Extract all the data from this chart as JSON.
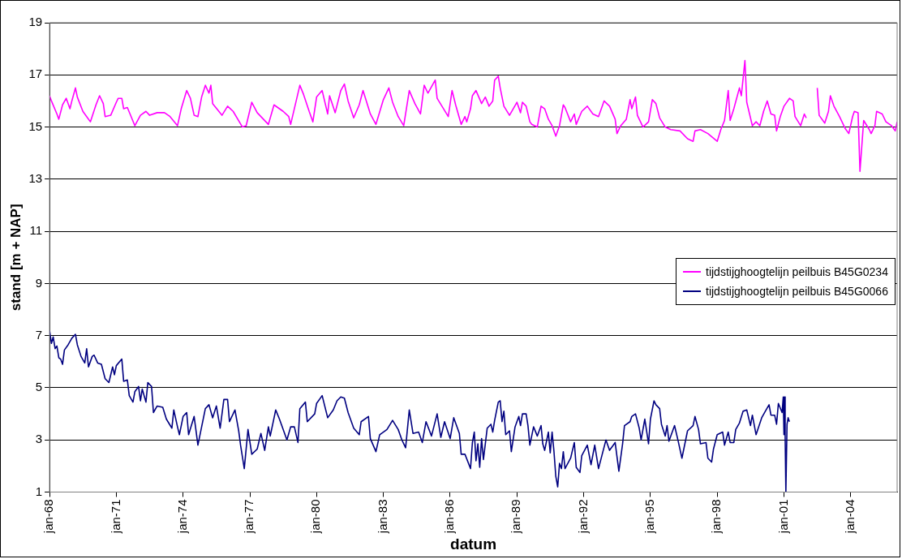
{
  "chart_data": {
    "type": "line",
    "xlabel": "datum",
    "ylabel": "stand [m + NAP]",
    "xlim": [
      "1968-01",
      "2006-02"
    ],
    "xticks": [
      {
        "value": "1968-01",
        "label": "jan-68"
      },
      {
        "value": "1971-01",
        "label": "jan-71"
      },
      {
        "value": "1974-01",
        "label": "jan-74"
      },
      {
        "value": "1977-01",
        "label": "jan-77"
      },
      {
        "value": "1980-01",
        "label": "jan-80"
      },
      {
        "value": "1983-01",
        "label": "jan-83"
      },
      {
        "value": "1986-01",
        "label": "jan-86"
      },
      {
        "value": "1989-01",
        "label": "jan-89"
      },
      {
        "value": "1992-01",
        "label": "jan-92"
      },
      {
        "value": "1995-01",
        "label": "jan-95"
      },
      {
        "value": "1998-01",
        "label": "jan-98"
      },
      {
        "value": "2001-01",
        "label": "jan-01"
      },
      {
        "value": "2004-01",
        "label": "jan-04"
      }
    ],
    "ylim": [
      1,
      19
    ],
    "yticks": [
      1,
      3,
      5,
      7,
      9,
      11,
      13,
      15,
      17,
      19
    ],
    "grid": "y",
    "legend": "right",
    "series": [
      {
        "name": "tijdstijghoogtelijn peilbuis B45G0234",
        "color": "#ff00ff",
        "x": [
          "1968-01",
          "1968-02",
          "1968-05",
          "1968-06",
          "1968-08",
          "1968-10",
          "1968-12",
          "1969-01",
          "1969-03",
          "1969-04",
          "1969-07",
          "1969-09",
          "1969-11",
          "1970-02",
          "1970-04",
          "1970-06",
          "1970-07",
          "1970-10",
          "1971-01",
          "1971-02",
          "1971-04",
          "1971-05",
          "1971-07",
          "1971-09",
          "1971-11",
          "1972-02",
          "1972-05",
          "1972-07",
          "1972-11",
          "1973-03",
          "1973-06",
          "1973-10",
          "1973-12",
          "1974-03",
          "1974-05",
          "1974-07",
          "1974-09",
          "1974-11",
          "1975-01",
          "1975-03",
          "1975-04",
          "1975-05",
          "1975-10",
          "1976-01",
          "1976-04",
          "1976-09",
          "1976-11",
          "1977-02",
          "1977-05",
          "1977-11",
          "1978-02",
          "1978-07",
          "1978-10",
          "1978-11",
          "1979-04",
          "1979-06",
          "1979-09",
          "1979-11",
          "1980-01",
          "1980-04",
          "1980-07",
          "1980-08",
          "1980-11",
          "1981-02",
          "1981-04",
          "1981-06",
          "1981-09",
          "1981-12",
          "1982-02",
          "1982-06",
          "1982-09",
          "1983-01",
          "1983-04",
          "1983-06",
          "1983-09",
          "1983-12",
          "1984-03",
          "1984-06",
          "1984-09",
          "1984-11",
          "1985-01",
          "1985-05",
          "1985-06",
          "1985-12",
          "1986-02",
          "1986-04",
          "1986-07",
          "1986-09",
          "1986-10",
          "1986-12",
          "1987-01",
          "1987-03",
          "1987-06",
          "1987-08",
          "1987-10",
          "1987-12",
          "1988-01",
          "1988-03",
          "1988-04",
          "1988-06",
          "1988-09",
          "1988-11",
          "1989-01",
          "1989-03",
          "1989-04",
          "1989-06",
          "1989-08",
          "1989-09",
          "1989-12",
          "1990-02",
          "1990-04",
          "1990-06",
          "1990-08",
          "1990-10",
          "1990-12",
          "1991-02",
          "1991-03",
          "1991-06",
          "1991-08",
          "1991-09",
          "1991-12",
          "1992-03",
          "1992-06",
          "1992-09",
          "1992-12",
          "1993-03",
          "1993-06",
          "1993-07",
          "1993-09",
          "1993-12",
          "1994-02",
          "1994-03",
          "1994-05",
          "1994-06",
          "1994-09",
          "1994-12",
          "1995-02",
          "1995-04",
          "1995-06",
          "1995-09",
          "1995-12",
          "1996-05",
          "1996-09",
          "1996-12",
          "1997-01",
          "1997-04",
          "1997-08",
          "1998-01",
          "1998-03",
          "1998-05",
          "1998-07",
          "1998-08",
          "1998-10",
          "1999-01",
          "1999-02",
          "1999-04",
          "1999-05",
          "1999-08",
          "1999-10",
          "1999-12",
          "2000-02",
          "2000-04",
          "2000-06",
          "2000-08",
          "2000-09",
          "2000-11",
          "2001-01",
          "2001-04",
          "2001-06",
          "2001-07",
          "2001-10",
          "2001-12",
          "2002-01",
          "2002-04",
          "2002-07",
          "2002-08",
          "2002-11",
          "2003-01",
          "2003-02",
          "2003-04",
          "2003-07",
          "2003-10",
          "2003-12",
          "2004-02",
          "2004-03",
          "2004-05",
          "2004-06",
          "2004-08",
          "2004-11",
          "2004-12",
          "2005-02",
          "2005-03",
          "2005-06",
          "2005-08",
          "2005-11",
          "2006-01",
          "2006-02"
        ],
        "values": [
          16.2,
          16.0,
          15.5,
          15.3,
          15.85,
          16.1,
          15.7,
          16.0,
          16.5,
          16.15,
          15.6,
          15.4,
          15.2,
          15.85,
          16.2,
          15.9,
          15.4,
          15.45,
          15.95,
          16.1,
          16.1,
          15.7,
          15.75,
          15.4,
          15.05,
          15.45,
          15.6,
          15.45,
          15.55,
          15.55,
          15.4,
          15.05,
          15.7,
          16.4,
          16.1,
          15.45,
          15.4,
          16.15,
          16.6,
          16.3,
          16.6,
          15.9,
          15.45,
          15.8,
          15.6,
          15.0,
          15.05,
          15.95,
          15.55,
          15.1,
          15.85,
          15.6,
          15.4,
          15.1,
          16.6,
          16.25,
          15.6,
          15.2,
          16.15,
          16.4,
          15.5,
          16.2,
          15.55,
          16.4,
          16.65,
          16.0,
          15.35,
          15.85,
          16.4,
          15.5,
          15.1,
          16.05,
          16.5,
          15.95,
          15.4,
          15.05,
          16.4,
          15.9,
          15.5,
          16.6,
          16.3,
          16.8,
          16.1,
          15.4,
          16.4,
          15.85,
          15.1,
          15.4,
          15.2,
          15.7,
          16.2,
          16.4,
          15.9,
          16.15,
          15.8,
          16.0,
          16.8,
          16.95,
          16.5,
          15.8,
          15.45,
          15.7,
          15.95,
          15.55,
          15.95,
          15.8,
          15.2,
          15.1,
          15.0,
          15.8,
          15.7,
          15.3,
          15.05,
          14.65,
          15.05,
          15.85,
          15.75,
          15.2,
          15.5,
          15.1,
          15.6,
          15.8,
          15.5,
          15.4,
          16.0,
          15.8,
          15.3,
          14.75,
          15.05,
          15.3,
          16.05,
          15.7,
          16.15,
          15.45,
          15.0,
          15.2,
          16.05,
          15.9,
          15.35,
          15.0,
          14.9,
          14.85,
          14.55,
          14.45,
          14.85,
          14.9,
          14.75,
          14.45,
          14.9,
          15.25,
          16.4,
          15.25,
          15.7,
          16.5,
          16.2,
          17.55,
          15.95,
          15.05,
          15.2,
          15.05,
          15.6,
          16.0,
          15.5,
          15.45,
          14.85,
          15.4,
          15.8,
          16.1,
          16.0,
          15.4,
          15.05,
          15.5,
          15.35,
          null,
          16.5,
          15.45,
          15.15,
          15.6,
          16.2,
          15.8,
          15.4,
          14.95,
          14.75,
          15.4,
          15.6,
          15.55,
          13.3,
          15.25,
          14.9,
          14.75,
          15.05,
          15.6,
          15.5,
          15.2,
          15.05,
          14.85,
          15.2
        ]
      },
      {
        "name": "tijdstijghoogtelijn peilbuis B45G0066",
        "color": "#000080",
        "x": [
          "1968-01",
          "1968-02",
          "1968-03",
          "1968-04",
          "1968-05",
          "1968-06",
          "1968-07",
          "1968-08",
          "1968-09",
          "1968-11",
          "1969-01",
          "1969-03",
          "1969-04",
          "1969-06",
          "1969-08",
          "1969-09",
          "1969-10",
          "1969-12",
          "1970-01",
          "1970-03",
          "1970-05",
          "1970-07",
          "1970-09",
          "1970-11",
          "1970-12",
          "1971-01",
          "1971-04",
          "1971-05",
          "1971-07",
          "1971-08",
          "1971-10",
          "1971-11",
          "1972-01",
          "1972-02",
          "1972-03",
          "1972-05",
          "1972-06",
          "1972-08",
          "1972-09",
          "1972-11",
          "1973-02",
          "1973-04",
          "1973-07",
          "1973-08",
          "1973-10",
          "1973-11",
          "1974-01",
          "1974-03",
          "1974-04",
          "1974-07",
          "1974-09",
          "1974-11",
          "1975-01",
          "1975-03",
          "1975-05",
          "1975-07",
          "1975-09",
          "1975-11",
          "1976-01",
          "1976-02",
          "1976-05",
          "1976-07",
          "1976-08",
          "1976-10",
          "1976-12",
          "1977-02",
          "1977-05",
          "1977-07",
          "1977-09",
          "1977-11",
          "1977-12",
          "1978-03",
          "1978-05",
          "1978-09",
          "1978-11",
          "1979-01",
          "1979-03",
          "1979-04",
          "1979-07",
          "1979-08",
          "1979-12",
          "1980-01",
          "1980-04",
          "1980-07",
          "1980-10",
          "1980-12",
          "1981-02",
          "1981-04",
          "1981-06",
          "1981-09",
          "1981-12",
          "1982-01",
          "1982-05",
          "1982-06",
          "1982-09",
          "1982-11",
          "1983-03",
          "1983-06",
          "1983-09",
          "1983-11",
          "1984-01",
          "1984-03",
          "1984-05",
          "1984-08",
          "1984-10",
          "1984-12",
          "1985-03",
          "1985-06",
          "1985-08",
          "1985-10",
          "1986-01",
          "1986-03",
          "1986-06",
          "1986-07",
          "1986-09",
          "1986-12",
          "1987-01",
          "1987-02",
          "1987-03",
          "1987-04",
          "1987-05",
          "1987-06",
          "1987-07",
          "1987-08",
          "1987-09",
          "1987-11",
          "1987-12",
          "1988-01",
          "1988-03",
          "1988-04",
          "1988-05",
          "1988-06",
          "1988-07",
          "1988-09",
          "1988-10",
          "1988-12",
          "1989-02",
          "1989-03",
          "1989-04",
          "1989-06",
          "1989-07",
          "1989-08",
          "1989-10",
          "1989-12",
          "1990-02",
          "1990-03",
          "1990-04",
          "1990-06",
          "1990-07",
          "1990-08",
          "1990-09",
          "1990-10",
          "1990-11",
          "1990-12",
          "1991-01",
          "1991-02",
          "1991-03",
          "1991-06",
          "1991-08",
          "1991-09",
          "1991-11",
          "1991-12",
          "1992-03",
          "1992-05",
          "1992-07",
          "1992-09",
          "1992-11",
          "1993-01",
          "1993-03",
          "1993-06",
          "1993-08",
          "1993-10",
          "1993-11",
          "1994-02",
          "1994-03",
          "1994-05",
          "1994-07",
          "1994-08",
          "1994-10",
          "1994-12",
          "1995-01",
          "1995-03",
          "1995-04",
          "1995-06",
          "1995-07",
          "1995-09",
          "1995-10",
          "1995-11",
          "1996-02",
          "1996-04",
          "1996-06",
          "1996-09",
          "1996-12",
          "1997-01",
          "1997-03",
          "1997-04",
          "1997-07",
          "1997-08",
          "1997-10",
          "1997-11",
          "1998-01",
          "1998-04",
          "1998-05",
          "1998-07",
          "1998-08",
          "1998-10",
          "1998-11",
          "1999-01",
          "1999-03",
          "1999-05",
          "1999-07",
          "1999-08",
          "1999-10",
          "2000-01",
          "2000-03",
          "2000-05",
          "2000-06",
          "2000-08",
          "2000-09",
          "2000-10",
          "2000-12-01",
          "2000-12-20",
          "2001-01-01",
          "2001-01-10",
          "2001-01-20",
          "2001-02-01",
          "2001-02-20",
          "2001-03-10",
          "2001-03-31"
        ],
        "values": [
          7.2,
          6.7,
          6.95,
          6.5,
          6.6,
          6.15,
          6.1,
          5.9,
          6.45,
          6.65,
          6.9,
          7.05,
          6.65,
          6.2,
          5.95,
          6.5,
          5.8,
          6.2,
          6.25,
          5.95,
          5.9,
          5.35,
          5.2,
          5.8,
          5.5,
          5.85,
          6.1,
          5.25,
          5.3,
          4.7,
          4.45,
          4.85,
          5.05,
          4.5,
          4.95,
          4.45,
          5.2,
          5.05,
          4.05,
          4.3,
          4.25,
          3.8,
          3.45,
          4.15,
          3.5,
          3.2,
          3.9,
          4.05,
          3.2,
          3.9,
          2.8,
          3.5,
          4.2,
          4.35,
          3.85,
          4.3,
          3.45,
          4.55,
          4.55,
          3.7,
          4.15,
          3.35,
          2.8,
          1.9,
          3.4,
          2.45,
          2.65,
          3.25,
          2.6,
          3.5,
          3.15,
          4.15,
          3.8,
          3.0,
          3.5,
          3.5,
          2.9,
          4.2,
          4.45,
          3.7,
          4.0,
          4.4,
          4.7,
          3.85,
          4.15,
          4.5,
          4.65,
          4.6,
          4.05,
          3.45,
          3.2,
          3.7,
          3.9,
          3.05,
          2.55,
          3.2,
          3.4,
          3.75,
          3.4,
          3.0,
          2.7,
          4.15,
          3.25,
          3.3,
          2.9,
          3.7,
          3.15,
          4.0,
          3.1,
          3.7,
          3.05,
          3.85,
          3.25,
          2.45,
          2.45,
          1.9,
          2.9,
          3.3,
          2.2,
          2.85,
          1.95,
          3.05,
          2.25,
          2.85,
          3.45,
          3.6,
          3.3,
          3.75,
          4.45,
          4.5,
          3.7,
          4.1,
          3.2,
          3.35,
          2.55,
          3.5,
          3.9,
          3.55,
          4.0,
          4.0,
          3.55,
          2.8,
          3.5,
          3.15,
          3.55,
          2.85,
          2.6,
          3.3,
          2.5,
          3.3,
          2.55,
          1.6,
          1.2,
          2.1,
          1.9,
          2.55,
          1.9,
          2.3,
          2.9,
          1.95,
          1.75,
          2.4,
          2.8,
          2.05,
          2.8,
          1.9,
          2.45,
          3.0,
          2.6,
          2.9,
          1.8,
          2.85,
          3.55,
          3.7,
          3.9,
          4.0,
          3.45,
          3.0,
          3.8,
          2.85,
          3.8,
          4.5,
          4.35,
          4.2,
          3.6,
          3.15,
          3.55,
          2.95,
          3.55,
          2.95,
          2.3,
          3.35,
          3.55,
          3.9,
          3.4,
          2.85,
          2.9,
          2.3,
          2.15,
          2.65,
          3.2,
          3.3,
          2.8,
          3.3,
          2.9,
          2.9,
          3.4,
          3.65,
          4.1,
          4.15,
          3.55,
          3.95,
          3.2,
          3.85,
          4.1,
          4.35,
          3.95,
          3.95,
          3.6,
          4.4,
          4.05,
          4.65,
          3.2,
          4.65,
          3.15,
          1.0,
          3.6,
          3.85,
          3.7
        ]
      }
    ]
  }
}
